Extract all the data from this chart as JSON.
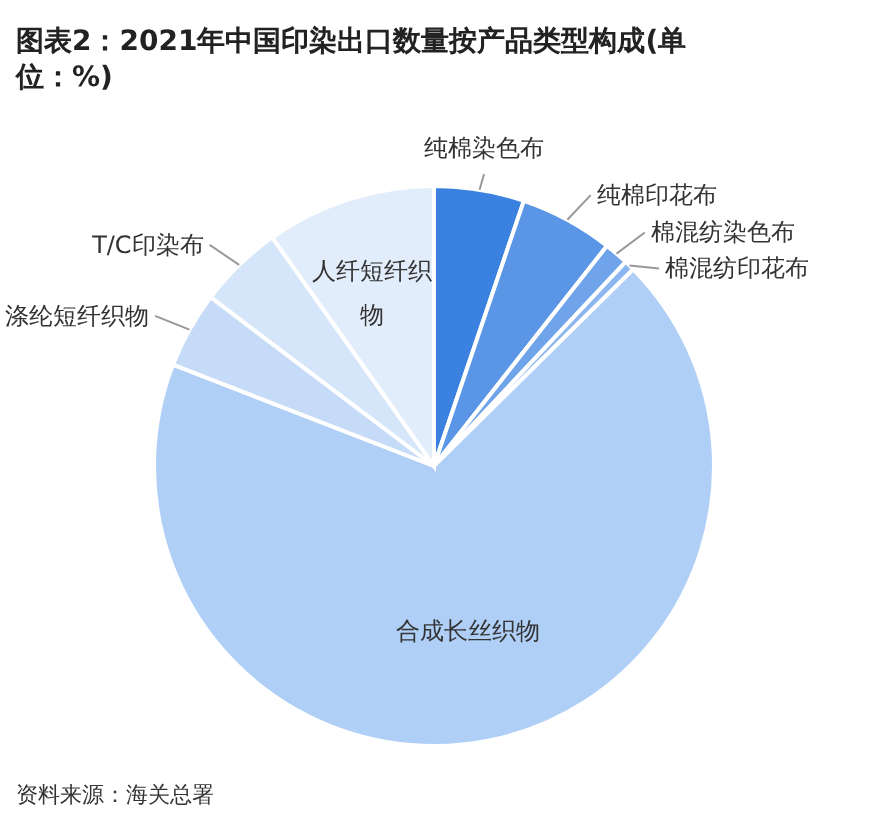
{
  "chart_data": {
    "type": "pie",
    "title": "图表2：2021年中国印染出口数量按产品类型构成(单位：%)",
    "categories": [
      "纯棉染色布",
      "纯棉印花布",
      "棉混纺染色布",
      "棉混纺印花布",
      "合成长丝织物",
      "涤纶短纤织物",
      "T/C印染布",
      "人纤短纤织物"
    ],
    "values": [
      5.2,
      5.4,
      1.4,
      0.6,
      68.3,
      4.4,
      4.9,
      9.8
    ],
    "colors": [
      "#3b82e0",
      "#5a95e6",
      "#6fa3ea",
      "#8cb6ef",
      "#afcff7",
      "#c5dbf7",
      "#d5e5fa",
      "#e2edfb"
    ],
    "annotations": [
      "资料来源：海关总署"
    ],
    "legend": false
  }
}
